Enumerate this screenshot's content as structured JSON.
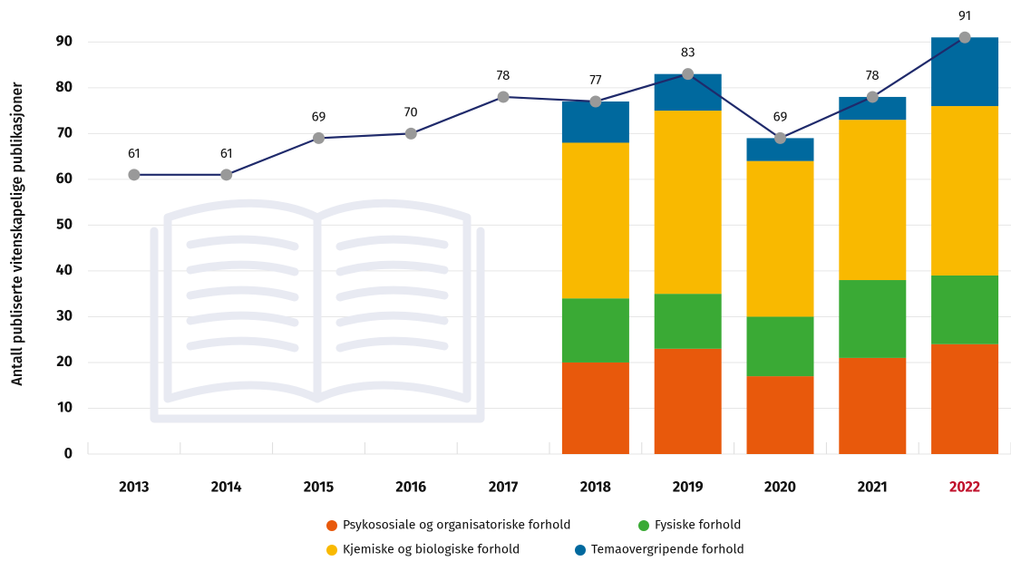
{
  "chart_data": {
    "type": "bar",
    "stacked": true,
    "y_label": "Antall publiserte vitenskapelige publikasjoner",
    "categories": [
      "2013",
      "2014",
      "2015",
      "2016",
      "2017",
      "2018",
      "2019",
      "2020",
      "2021",
      "2022"
    ],
    "category_label_colors": [
      "#111111",
      "#111111",
      "#111111",
      "#111111",
      "#111111",
      "#111111",
      "#111111",
      "#111111",
      "#111111",
      "#c0122c"
    ],
    "series": [
      {
        "name": "Psykososiale og organisatoriske forhold",
        "color": "#e8590c",
        "values": [
          null,
          null,
          null,
          null,
          null,
          20,
          23,
          17,
          21,
          24
        ]
      },
      {
        "name": "Fysiske forhold",
        "color": "#3aaa35",
        "values": [
          null,
          null,
          null,
          null,
          null,
          14,
          12,
          13,
          17,
          15
        ]
      },
      {
        "name": "Kjemiske og biologiske forhold",
        "color": "#f9b900",
        "values": [
          null,
          null,
          null,
          null,
          null,
          34,
          40,
          34,
          35,
          37
        ]
      },
      {
        "name": "Temaovergripende forhold",
        "color": "#00699e",
        "values": [
          null,
          null,
          null,
          null,
          null,
          9,
          8,
          5,
          5,
          15
        ]
      }
    ],
    "line": {
      "type": "line",
      "color": "#1f2a6b",
      "marker_color": "#999999",
      "values": [
        61,
        61,
        69,
        70,
        78,
        77,
        83,
        69,
        78,
        91
      ]
    },
    "ylim": [
      0,
      96
    ],
    "yticks": [
      0,
      10,
      20,
      30,
      40,
      50,
      60,
      70,
      80,
      90
    ],
    "grid": true
  }
}
